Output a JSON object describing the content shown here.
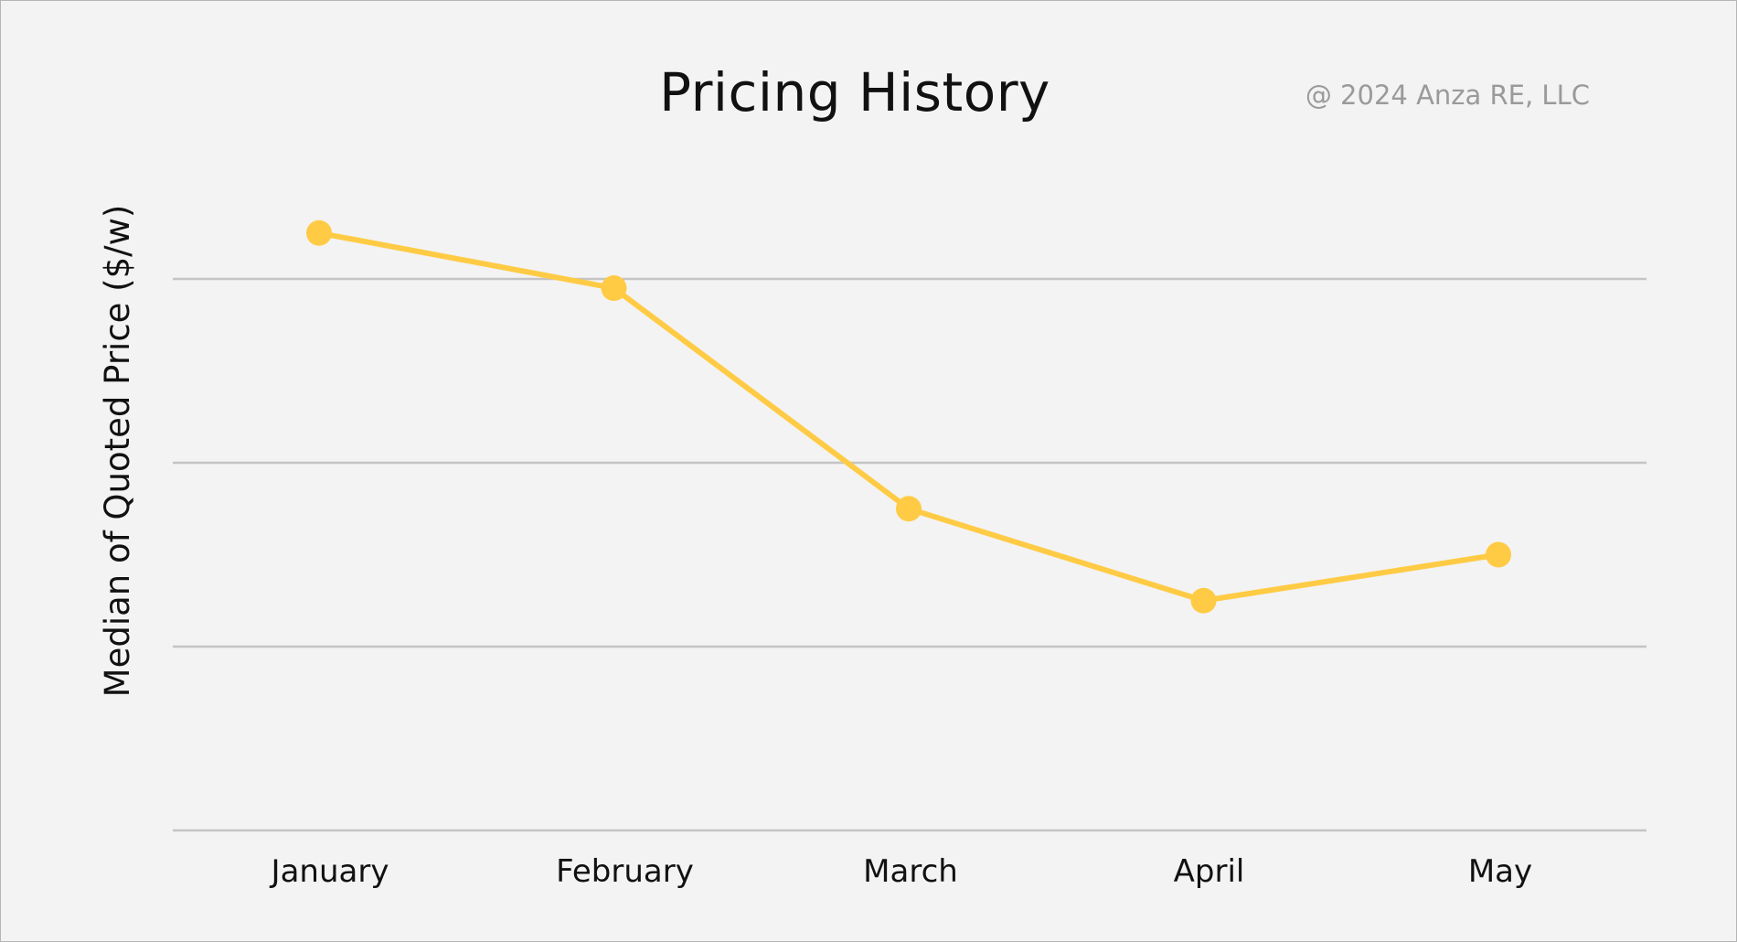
{
  "chart_data": {
    "type": "line",
    "title": "Pricing History",
    "watermark": "@ 2024 Anza RE, LLC",
    "xlabel": "",
    "ylabel": "Median of Quoted Price ($/w)",
    "categories": [
      "January",
      "February",
      "March",
      "April",
      "May"
    ],
    "series": [
      {
        "values": [
          3.25,
          2.95,
          1.75,
          1.25,
          1.5
        ]
      }
    ],
    "ylim": [
      0,
      4
    ],
    "gridlines": [
      0,
      1,
      2,
      3
    ],
    "grid": true,
    "y_tick_labels_shown": false,
    "line_color": "#ffcb45",
    "grid_color": "#c4c4c4",
    "background_color": "#f3f3f3"
  }
}
